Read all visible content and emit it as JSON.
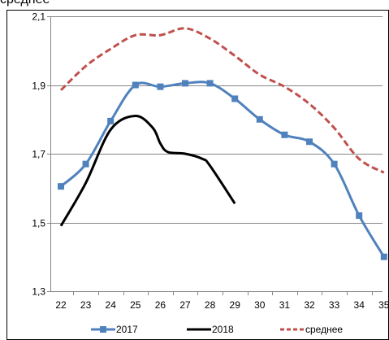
{
  "page": {
    "top_text": "среднее"
  },
  "chart_data": {
    "type": "line",
    "title": "",
    "xlabel": "",
    "ylabel": "",
    "categories": [
      "22",
      "23",
      "24",
      "25",
      "26",
      "27",
      "28",
      "29",
      "30",
      "31",
      "32",
      "33",
      "34",
      "35"
    ],
    "x": [
      22,
      23,
      24,
      25,
      26,
      27,
      28,
      29,
      30,
      31,
      32,
      33,
      34,
      35
    ],
    "ylim": [
      1.3,
      2.1
    ],
    "yticks": [
      1.3,
      1.5,
      1.7,
      1.9,
      2.1
    ],
    "ytick_labels": [
      "1,3",
      "1,5",
      "1,7",
      "1,9",
      "2,1"
    ],
    "grid": "horizontal",
    "legend_position": "bottom",
    "series": [
      {
        "name": "2017",
        "color": "#4f81bd",
        "style": "solid",
        "marker": "square",
        "smooth": true,
        "x": [
          22,
          23,
          24,
          25,
          26,
          27,
          28,
          29,
          30,
          31,
          32,
          33,
          34,
          35
        ],
        "values": [
          1.605,
          1.67,
          1.795,
          1.9,
          1.895,
          1.905,
          1.905,
          1.86,
          1.8,
          1.755,
          1.735,
          1.67,
          1.52,
          1.4
        ]
      },
      {
        "name": "2018",
        "color": "#000000",
        "style": "solid",
        "marker": "none",
        "smooth": true,
        "x": [
          22,
          23,
          24,
          25,
          25.7,
          26,
          26.3,
          27,
          27.7,
          28,
          29
        ],
        "values": [
          1.49,
          1.615,
          1.77,
          1.81,
          1.775,
          1.73,
          1.705,
          1.7,
          1.685,
          1.665,
          1.555
        ]
      },
      {
        "name": "среднее",
        "color": "#c0504d",
        "style": "dashed",
        "marker": "none",
        "smooth": true,
        "x": [
          22,
          23,
          24,
          25,
          26,
          27,
          28,
          29,
          30,
          31,
          32,
          33,
          34,
          35
        ],
        "values": [
          1.885,
          1.955,
          2.005,
          2.045,
          2.045,
          2.065,
          2.035,
          1.985,
          1.93,
          1.895,
          1.845,
          1.775,
          1.685,
          1.645
        ]
      }
    ]
  }
}
